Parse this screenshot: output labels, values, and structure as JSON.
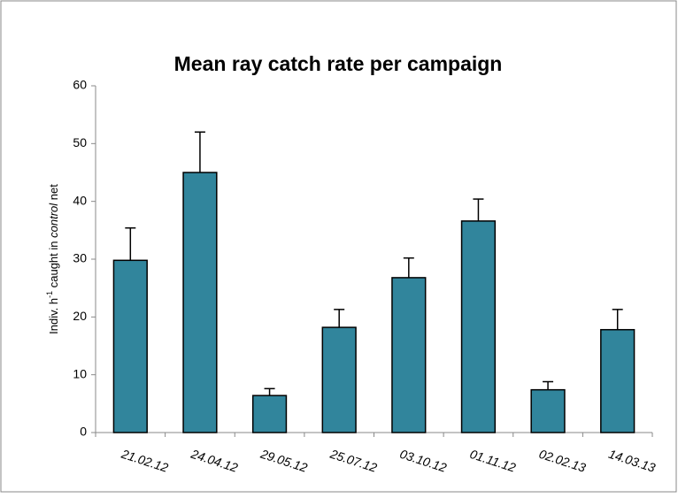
{
  "chart_data": {
    "type": "bar",
    "title": "Mean ray catch rate per campaign",
    "ylabel_parts": [
      "Indiv. h",
      "-1",
      " caught in ",
      "control",
      " net"
    ],
    "categories": [
      "21.02.12",
      "24.04.12",
      "29.05.12",
      "25.07.12",
      "03.10.12",
      "01.11.12",
      "02.02.13",
      "14.03.13"
    ],
    "values": [
      29.8,
      45,
      6.4,
      18.2,
      26.8,
      36.6,
      7.4,
      17.8
    ],
    "errors": [
      5.6,
      7,
      1.2,
      3.1,
      3.4,
      3.8,
      1.4,
      3.5
    ],
    "color": "#31859c",
    "ylim": [
      0,
      60
    ],
    "yticks": [
      0,
      10,
      20,
      30,
      40,
      50,
      60
    ],
    "grid": false
  }
}
